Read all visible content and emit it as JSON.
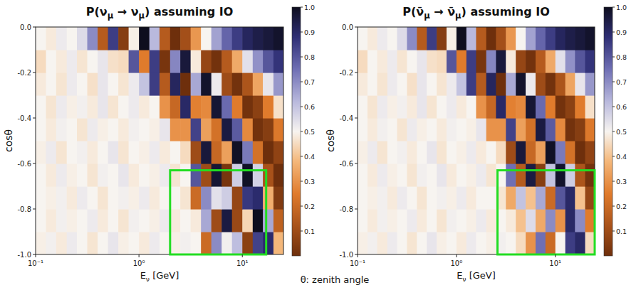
{
  "chart_data": [
    {
      "type": "heatmap",
      "title": "P(νμ → νμ) assuming IO",
      "x_label": "Eν [GeV]",
      "y_label": "cosθ",
      "log": "x",
      "xlim": [
        0.1,
        25
      ],
      "ylim": [
        -1,
        0
      ],
      "xticks": [
        {
          "value": 0.1,
          "label": "10⁻¹"
        },
        {
          "value": 1,
          "label": "10⁰"
        },
        {
          "value": 10,
          "label": "10¹"
        }
      ],
      "yticks": [
        {
          "value": -1,
          "label": "-1.0"
        },
        -0.8,
        -0.6,
        -0.4,
        -0.2,
        {
          "value": 0,
          "label": "0.0"
        }
      ],
      "x_bins": [
        0.1,
        0.126,
        0.158,
        0.2,
        0.251,
        0.316,
        0.398,
        0.501,
        0.631,
        0.794,
        1,
        1.26,
        1.58,
        2,
        2.51,
        3.16,
        3.98,
        5.01,
        6.31,
        7.94,
        10,
        12.6,
        15.8,
        20,
        25
      ],
      "y_bins": [
        -1,
        -0.9,
        -0.8,
        -0.7,
        -0.6,
        -0.5,
        -0.4,
        -0.3,
        -0.2,
        -0.1,
        0
      ],
      "cells": [
        [
          0.49,
          0.51,
          0.48,
          0.52,
          0.5,
          0.47,
          0.5,
          0.53,
          0.49,
          0.5,
          0.48,
          0.52,
          0.5,
          0.49,
          0.51,
          0.5,
          0.2,
          0.7,
          0.51,
          0.61,
          0.06,
          0.84,
          0.89,
          0.38
        ],
        [
          0.5,
          0.48,
          0.51,
          0.49,
          0.5,
          0.52,
          0.48,
          0.5,
          0.47,
          0.51,
          0.5,
          0.49,
          0.52,
          0.48,
          0.5,
          0.48,
          0.65,
          0.1,
          0.95,
          0.09,
          0.44,
          1.0,
          0.65,
          0.17
        ],
        [
          0.5,
          0.49,
          0.51,
          0.48,
          0.52,
          0.5,
          0.47,
          0.5,
          0.51,
          0.49,
          0.52,
          0.48,
          0.5,
          0.5,
          0.47,
          0.2,
          0.7,
          0.54,
          0.58,
          0.08,
          0.86,
          0.89,
          0.36,
          0.04
        ],
        [
          0.5,
          0.48,
          0.52,
          0.49,
          0.5,
          0.47,
          0.51,
          0.5,
          0.53,
          0.48,
          0.5,
          0.49,
          0.52,
          0.47,
          0.5,
          0.8,
          0.1,
          0.97,
          0.02,
          0.58,
          0.99,
          0.57,
          0.12,
          0.0
        ],
        [
          0.49,
          0.52,
          0.47,
          0.5,
          0.51,
          0.48,
          0.5,
          0.53,
          0.47,
          0.5,
          0.49,
          0.52,
          0.48,
          0.5,
          0.45,
          0.1,
          0.96,
          0.19,
          0.33,
          0.99,
          0.73,
          0.22,
          0.0,
          0.07
        ],
        [
          0.5,
          0.48,
          0.51,
          0.5,
          0.47,
          0.52,
          0.49,
          0.5,
          0.48,
          0.51,
          0.5,
          0.49,
          0.53,
          0.3,
          0.3,
          0.84,
          0.33,
          0.22,
          0.95,
          0.79,
          0.28,
          0.01,
          0.05,
          0.24
        ],
        [
          0.5,
          0.47,
          0.52,
          0.49,
          0.51,
          0.48,
          0.53,
          0.47,
          0.5,
          0.52,
          0.48,
          0.5,
          0.3,
          0.19,
          0.9,
          0.26,
          0.28,
          0.97,
          0.76,
          0.25,
          0.01,
          0.06,
          0.25,
          0.46
        ],
        [
          0.48,
          0.5,
          0.47,
          0.52,
          0.5,
          0.46,
          0.53,
          0.5,
          0.47,
          0.52,
          0.6,
          0.85,
          0.15,
          0.91,
          0.0,
          0.65,
          0.98,
          0.52,
          0.1,
          0.01,
          0.13,
          0.34,
          0.53,
          0.68
        ],
        [
          0.45,
          0.5,
          0.48,
          0.52,
          0.47,
          0.5,
          0.53,
          0.46,
          0.45,
          0.8,
          0.25,
          0.85,
          0.02,
          0.71,
          0.96,
          0.48,
          0.08,
          0.01,
          0.15,
          0.35,
          0.54,
          0.69,
          0.8,
          0.87
        ],
        [
          0.5,
          0.48,
          0.52,
          0.5,
          0.55,
          0.7,
          0.15,
          0.85,
          0.05,
          0.49,
          1.0,
          0.62,
          0.15,
          0.0,
          0.11,
          0.31,
          0.5,
          0.66,
          0.77,
          0.85,
          0.91,
          0.94,
          0.96,
          0.98
        ]
      ],
      "colorbar": {
        "range": [
          0,
          1
        ],
        "ticks": [
          0.1,
          0.2,
          0.3,
          0.4,
          0.5,
          0.6,
          0.7,
          0.8,
          0.9,
          {
            "value": 1,
            "label": "1.0"
          }
        ]
      },
      "highlight_box": {
        "x": [
          2,
          17
        ],
        "y": [
          -1,
          -0.63
        ],
        "color": "#22dd22"
      }
    },
    {
      "type": "heatmap",
      "title": "P(ν̄μ → ν̄μ) assuming IO",
      "x_label": "Eν [GeV]",
      "y_label": "cosθ",
      "log": "x",
      "xlim": [
        0.1,
        25
      ],
      "ylim": [
        -1,
        0
      ],
      "xticks": [
        {
          "value": 0.1,
          "label": "10⁻¹"
        },
        {
          "value": 1,
          "label": "10⁰"
        },
        {
          "value": 10,
          "label": "10¹"
        }
      ],
      "yticks": [
        {
          "value": -1,
          "label": "-1.0"
        },
        -0.8,
        -0.6,
        -0.4,
        -0.2,
        {
          "value": 0,
          "label": "0.0"
        }
      ],
      "x_bins": [
        0.1,
        0.126,
        0.158,
        0.2,
        0.251,
        0.316,
        0.398,
        0.501,
        0.631,
        0.794,
        1,
        1.26,
        1.58,
        2,
        2.51,
        3.16,
        3.98,
        5.01,
        6.31,
        7.94,
        10,
        12.6,
        15.8,
        20,
        25
      ],
      "y_bins": [
        -1,
        -0.9,
        -0.8,
        -0.7,
        -0.6,
        -0.5,
        -0.4,
        -0.3,
        -0.2,
        -0.1,
        0
      ],
      "cells": [
        [
          0.49,
          0.51,
          0.48,
          0.52,
          0.5,
          0.47,
          0.5,
          0.53,
          0.49,
          0.5,
          0.48,
          0.52,
          0.5,
          0.49,
          0.51,
          0.5,
          0.45,
          0.3,
          0.75,
          0.2,
          0.5,
          0.85,
          0.9,
          0.45
        ],
        [
          0.5,
          0.48,
          0.51,
          0.49,
          0.5,
          0.52,
          0.48,
          0.5,
          0.47,
          0.51,
          0.5,
          0.49,
          0.52,
          0.48,
          0.5,
          0.48,
          0.4,
          0.55,
          0.35,
          0.7,
          0.3,
          0.9,
          0.7,
          0.25
        ],
        [
          0.5,
          0.49,
          0.51,
          0.48,
          0.52,
          0.5,
          0.47,
          0.5,
          0.51,
          0.49,
          0.52,
          0.48,
          0.5,
          0.5,
          0.47,
          0.35,
          0.6,
          0.4,
          0.65,
          0.2,
          0.8,
          0.9,
          0.4,
          0.08
        ],
        [
          0.5,
          0.48,
          0.52,
          0.49,
          0.5,
          0.47,
          0.51,
          0.5,
          0.53,
          0.48,
          0.5,
          0.49,
          0.52,
          0.47,
          0.5,
          0.75,
          0.15,
          0.95,
          0.05,
          0.6,
          0.98,
          0.58,
          0.13,
          0.01
        ],
        [
          0.49,
          0.52,
          0.47,
          0.5,
          0.51,
          0.48,
          0.5,
          0.53,
          0.47,
          0.5,
          0.49,
          0.52,
          0.48,
          0.5,
          0.45,
          0.1,
          0.96,
          0.19,
          0.33,
          0.99,
          0.73,
          0.22,
          0.0,
          0.07
        ],
        [
          0.5,
          0.48,
          0.51,
          0.5,
          0.47,
          0.52,
          0.49,
          0.5,
          0.48,
          0.51,
          0.5,
          0.49,
          0.53,
          0.3,
          0.3,
          0.84,
          0.33,
          0.22,
          0.95,
          0.79,
          0.28,
          0.01,
          0.05,
          0.24
        ],
        [
          0.5,
          0.47,
          0.52,
          0.49,
          0.51,
          0.48,
          0.53,
          0.47,
          0.5,
          0.52,
          0.48,
          0.5,
          0.3,
          0.19,
          0.9,
          0.26,
          0.28,
          0.97,
          0.76,
          0.25,
          0.01,
          0.06,
          0.25,
          0.46
        ],
        [
          0.48,
          0.5,
          0.47,
          0.52,
          0.5,
          0.46,
          0.53,
          0.5,
          0.47,
          0.52,
          0.6,
          0.85,
          0.15,
          0.91,
          0.0,
          0.65,
          0.98,
          0.52,
          0.1,
          0.01,
          0.13,
          0.34,
          0.53,
          0.68
        ],
        [
          0.45,
          0.5,
          0.48,
          0.52,
          0.47,
          0.5,
          0.53,
          0.46,
          0.45,
          0.8,
          0.25,
          0.85,
          0.02,
          0.71,
          0.96,
          0.48,
          0.08,
          0.01,
          0.15,
          0.35,
          0.54,
          0.69,
          0.8,
          0.87
        ],
        [
          0.5,
          0.48,
          0.52,
          0.5,
          0.55,
          0.7,
          0.15,
          0.85,
          0.05,
          0.49,
          1.0,
          0.62,
          0.15,
          0.0,
          0.11,
          0.31,
          0.5,
          0.66,
          0.77,
          0.85,
          0.91,
          0.94,
          0.96,
          0.98
        ]
      ],
      "colorbar": {
        "range": [
          0,
          1
        ],
        "ticks": [
          0.1,
          0.2,
          0.3,
          0.4,
          0.5,
          0.6,
          0.7,
          0.8,
          0.9,
          {
            "value": 1,
            "label": "1.0"
          }
        ]
      },
      "highlight_box": {
        "x": [
          2.6,
          25
        ],
        "y": [
          -1,
          -0.63
        ],
        "color": "#22dd22"
      }
    }
  ],
  "caption": "θ: zenith angle"
}
